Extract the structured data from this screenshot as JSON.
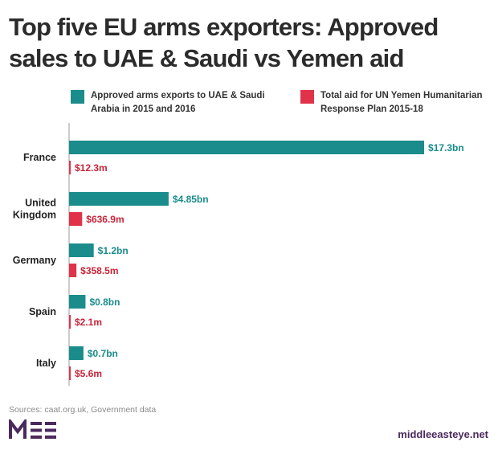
{
  "title": "Top five EU arms exporters: Approved sales to UAE & Saudi vs Yemen aid",
  "legend": [
    {
      "label": "Approved arms exports to UAE & Saudi Arabia in 2015 and 2016",
      "color": "#1a8c8c"
    },
    {
      "label": "Total aid for UN Yemen Humanitarian Response Plan 2015-18",
      "color": "#e0334a"
    }
  ],
  "chart_data": {
    "type": "bar",
    "orientation": "horizontal",
    "categories": [
      {
        "name": "France",
        "lines": [
          "France"
        ]
      },
      {
        "name": "United Kingdom",
        "lines": [
          "United",
          "Kingdom"
        ]
      },
      {
        "name": "Germany",
        "lines": [
          "Germany"
        ]
      },
      {
        "name": "Spain",
        "lines": [
          "Spain"
        ]
      },
      {
        "name": "Italy",
        "lines": [
          "Italy"
        ]
      }
    ],
    "series": [
      {
        "name": "Approved arms exports to UAE & Saudi Arabia in 2015 and 2016",
        "color": "#1a8c8c",
        "values_usd_m": [
          17300,
          4850,
          1200,
          800,
          700
        ],
        "labels": [
          "$17.3bn",
          "$4.85bn",
          "$1.2bn",
          "$0.8bn",
          "$0.7bn"
        ]
      },
      {
        "name": "Total aid for UN Yemen Humanitarian Response Plan 2015-18",
        "color": "#e0334a",
        "label_color": "#c8243a",
        "values_usd_m": [
          12.3,
          636.9,
          358.5,
          2.1,
          5.6
        ],
        "labels": [
          "$12.3m",
          "$636.9m",
          "$358.5m",
          "$2.1m",
          "$5.6m"
        ]
      }
    ],
    "xmax_usd_m": 17300
  },
  "footer": {
    "source": "Sources: caat.org.uk, Government data",
    "logo": "MEE",
    "site": "middleeasteye.net"
  }
}
